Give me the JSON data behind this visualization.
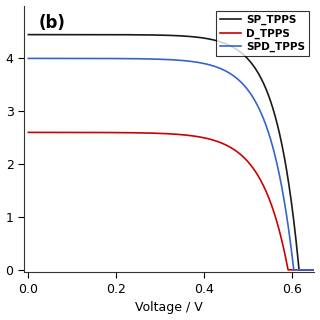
{
  "title": "(b)",
  "xlabel": "Voltage / V",
  "ylabel": "",
  "xlim": [
    -0.01,
    0.65
  ],
  "ylim": [
    -0.05,
    5.0
  ],
  "ytick_vals": [
    0,
    1,
    2,
    3,
    4
  ],
  "xticks": [
    0.0,
    0.2,
    0.4,
    0.6
  ],
  "background_color": "#ffffff",
  "series": [
    {
      "label": "SP_TPPS",
      "color": "#1a1a1a",
      "isc": 4.45,
      "voc": 0.615,
      "n": 12.0
    },
    {
      "label": "D_TPPS",
      "color": "#cc0000",
      "isc": 2.6,
      "voc": 0.59,
      "n": 10.0
    },
    {
      "label": "SPD_TPPS",
      "color": "#3366cc",
      "isc": 4.0,
      "voc": 0.603,
      "n": 11.0
    }
  ]
}
